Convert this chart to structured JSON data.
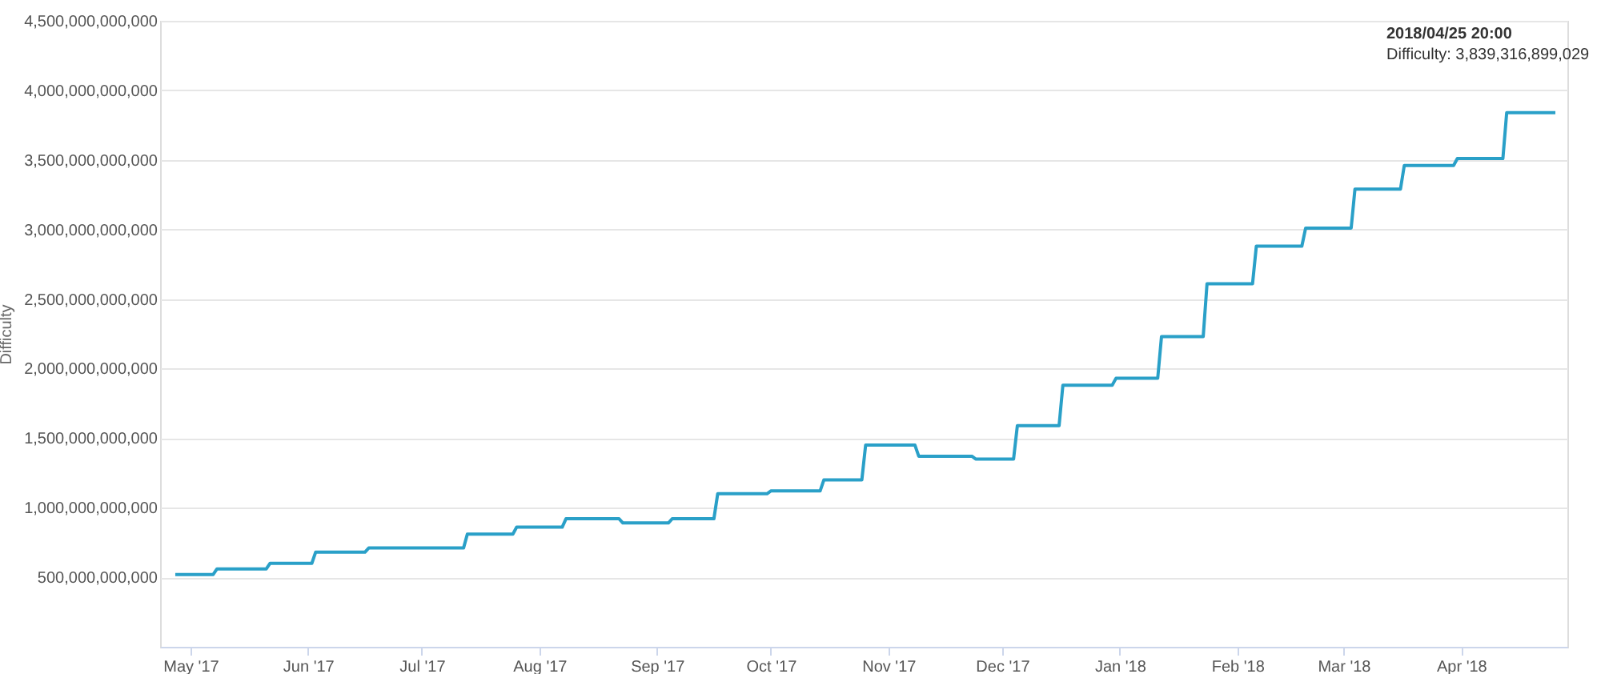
{
  "chart_data": {
    "type": "line",
    "ylabel": "Difficulty",
    "x": [
      "2017-04-27",
      "2017-05-07",
      "2017-05-08",
      "2017-05-21",
      "2017-05-22",
      "2017-06-02",
      "2017-06-03",
      "2017-06-16",
      "2017-06-17",
      "2017-07-12",
      "2017-07-13",
      "2017-07-25",
      "2017-07-26",
      "2017-08-07",
      "2017-08-08",
      "2017-08-22",
      "2017-08-23",
      "2017-09-04",
      "2017-09-05",
      "2017-09-16",
      "2017-09-17",
      "2017-09-30",
      "2017-10-01",
      "2017-10-14",
      "2017-10-15",
      "2017-10-25",
      "2017-10-26",
      "2017-11-08",
      "2017-11-09",
      "2017-11-23",
      "2017-11-24",
      "2017-12-04",
      "2017-12-05",
      "2017-12-16",
      "2017-12-17",
      "2017-12-30",
      "2017-12-31",
      "2018-01-11",
      "2018-01-12",
      "2018-01-23",
      "2018-01-24",
      "2018-02-05",
      "2018-02-06",
      "2018-02-18",
      "2018-02-19",
      "2018-03-03",
      "2018-03-04",
      "2018-03-16",
      "2018-03-17",
      "2018-03-30",
      "2018-03-31",
      "2018-04-12",
      "2018-04-13",
      "2018-04-25T20:00"
    ],
    "series": [
      {
        "color": "#2aa0c8",
        "values": [
          520000000000,
          520000000000,
          560000000000,
          560000000000,
          600000000000,
          600000000000,
          680000000000,
          680000000000,
          710000000000,
          710000000000,
          810000000000,
          810000000000,
          860000000000,
          860000000000,
          920000000000,
          920000000000,
          890000000000,
          890000000000,
          920000000000,
          920000000000,
          1100000000000,
          1100000000000,
          1120000000000,
          1120000000000,
          1200000000000,
          1200000000000,
          1450000000000,
          1450000000000,
          1370000000000,
          1370000000000,
          1350000000000,
          1350000000000,
          1590000000000,
          1590000000000,
          1880000000000,
          1880000000000,
          1930000000000,
          1930000000000,
          2230000000000,
          2230000000000,
          2610000000000,
          2610000000000,
          2880000000000,
          2880000000000,
          3010000000000,
          3010000000000,
          3290000000000,
          3290000000000,
          3460000000000,
          3460000000000,
          3510000000000,
          3510000000000,
          3839316899029,
          3839316899029
        ]
      }
    ],
    "xlim": [
      "2017-04-23",
      "2018-04-29"
    ],
    "xticks": [
      {
        "value": "2017-05-01",
        "label": "May '17"
      },
      {
        "value": "2017-06-01",
        "label": "Jun '17"
      },
      {
        "value": "2017-07-01",
        "label": "Jul '17"
      },
      {
        "value": "2017-08-01",
        "label": "Aug '17"
      },
      {
        "value": "2017-09-01",
        "label": "Sep '17"
      },
      {
        "value": "2017-10-01",
        "label": "Oct '17"
      },
      {
        "value": "2017-11-01",
        "label": "Nov '17"
      },
      {
        "value": "2017-12-01",
        "label": "Dec '17"
      },
      {
        "value": "2018-01-01",
        "label": "Jan '18"
      },
      {
        "value": "2018-02-01",
        "label": "Feb '18"
      },
      {
        "value": "2018-03-01",
        "label": "Mar '18"
      },
      {
        "value": "2018-04-01",
        "label": "Apr '18"
      }
    ],
    "ylim": [
      0,
      4500000000000
    ],
    "yticks": [
      {
        "value": 0,
        "label": null
      },
      {
        "value": 500000000000,
        "label": "500,000,000,000"
      },
      {
        "value": 1000000000000,
        "label": "1,000,000,000,000"
      },
      {
        "value": 1500000000000,
        "label": "1,500,000,000,000"
      },
      {
        "value": 2000000000000,
        "label": "2,000,000,000,000"
      },
      {
        "value": 2500000000000,
        "label": "2,500,000,000,000"
      },
      {
        "value": 3000000000000,
        "label": "3,000,000,000,000"
      },
      {
        "value": 3500000000000,
        "label": "3,500,000,000,000"
      },
      {
        "value": 4000000000000,
        "label": "4,000,000,000,000"
      },
      {
        "value": 4500000000000,
        "label": "4,500,000,000,000"
      }
    ],
    "annotations": [
      "2018/04/25 20:00",
      "Difficulty: 3,839,316,899,029"
    ],
    "grid": "y",
    "marker": "none",
    "line_style": "solid"
  }
}
